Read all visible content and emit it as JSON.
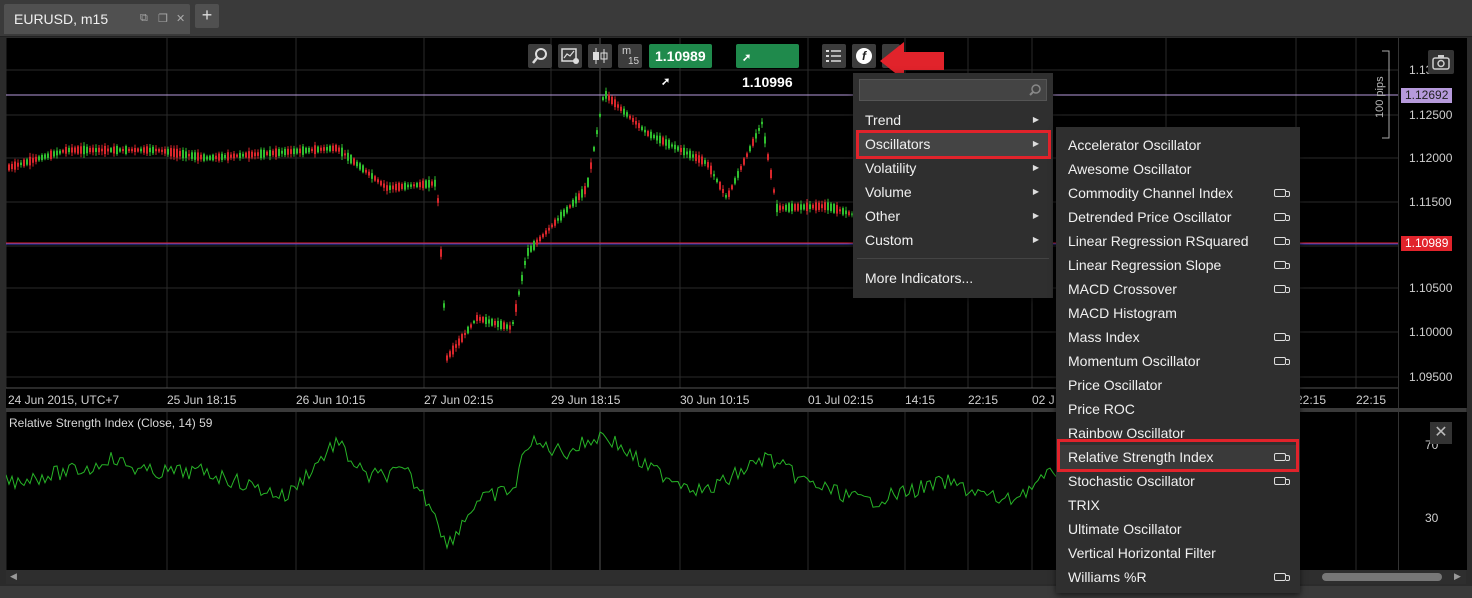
{
  "tab": {
    "title": "EURUSD, m15"
  },
  "toolbar": {
    "timeframe_label": "m",
    "timeframe_value": "15",
    "sell_price": "1.10989",
    "buy_price": "1.10996",
    "arrow_color": "#e1232b"
  },
  "indicator_menu": {
    "search_placeholder": "",
    "items": [
      {
        "label": "Trend"
      },
      {
        "label": "Oscillators"
      },
      {
        "label": "Volatility"
      },
      {
        "label": "Volume"
      },
      {
        "label": "Other"
      },
      {
        "label": "Custom"
      }
    ],
    "more_label": "More Indicators..."
  },
  "oscillators_submenu": [
    {
      "label": "Accelerator Oscillator",
      "video": false
    },
    {
      "label": "Awesome Oscillator",
      "video": false
    },
    {
      "label": "Commodity Channel Index",
      "video": true
    },
    {
      "label": "Detrended Price Oscillator",
      "video": true
    },
    {
      "label": "Linear Regression RSquared",
      "video": true
    },
    {
      "label": "Linear Regression Slope",
      "video": true
    },
    {
      "label": "MACD Crossover",
      "video": true
    },
    {
      "label": "MACD Histogram",
      "video": false
    },
    {
      "label": "Mass Index",
      "video": true
    },
    {
      "label": "Momentum Oscillator",
      "video": true
    },
    {
      "label": "Price Oscillator",
      "video": false
    },
    {
      "label": "Price ROC",
      "video": false
    },
    {
      "label": "Rainbow Oscillator",
      "video": false
    },
    {
      "label": "Relative Strength Index",
      "video": true
    },
    {
      "label": "Stochastic Oscillator",
      "video": true
    },
    {
      "label": "TRIX",
      "video": false
    },
    {
      "label": "Ultimate Oscillator",
      "video": false
    },
    {
      "label": "Vertical Horizontal Filter",
      "video": false
    },
    {
      "label": "Williams %R",
      "video": true
    }
  ],
  "price_axis": {
    "ticks": [
      "1.13000",
      "1.12500",
      "1.12000",
      "1.11500",
      "1.11000",
      "1.10500",
      "1.10000",
      "1.09500"
    ],
    "current_bid_tag": "1.10989",
    "line_tag": "1.12692",
    "pips_label": "100 pips",
    "bid_color": "#e1232b",
    "line_color": "#b69adb"
  },
  "time_axis": {
    "labels": [
      "24 Jun 2015, UTC+7",
      "25 Jun 18:15",
      "26 Jun 10:15",
      "27 Jun 02:15",
      "29 Jun 18:15",
      "30 Jun 10:15",
      "01 Jul 02:15",
      "14:15",
      "22:15",
      "02 J",
      "22:15",
      "22:15"
    ]
  },
  "rsi_panel": {
    "title": "Relative Strength Index (Close, 14) 59",
    "ticks": [
      "70",
      "30"
    ],
    "line_color": "#27b427"
  },
  "colors": {
    "up_candle": "#2fbf2f",
    "down_candle": "#d9262b",
    "highlight": "#e1232b",
    "price_button": "#1f8a4c"
  }
}
